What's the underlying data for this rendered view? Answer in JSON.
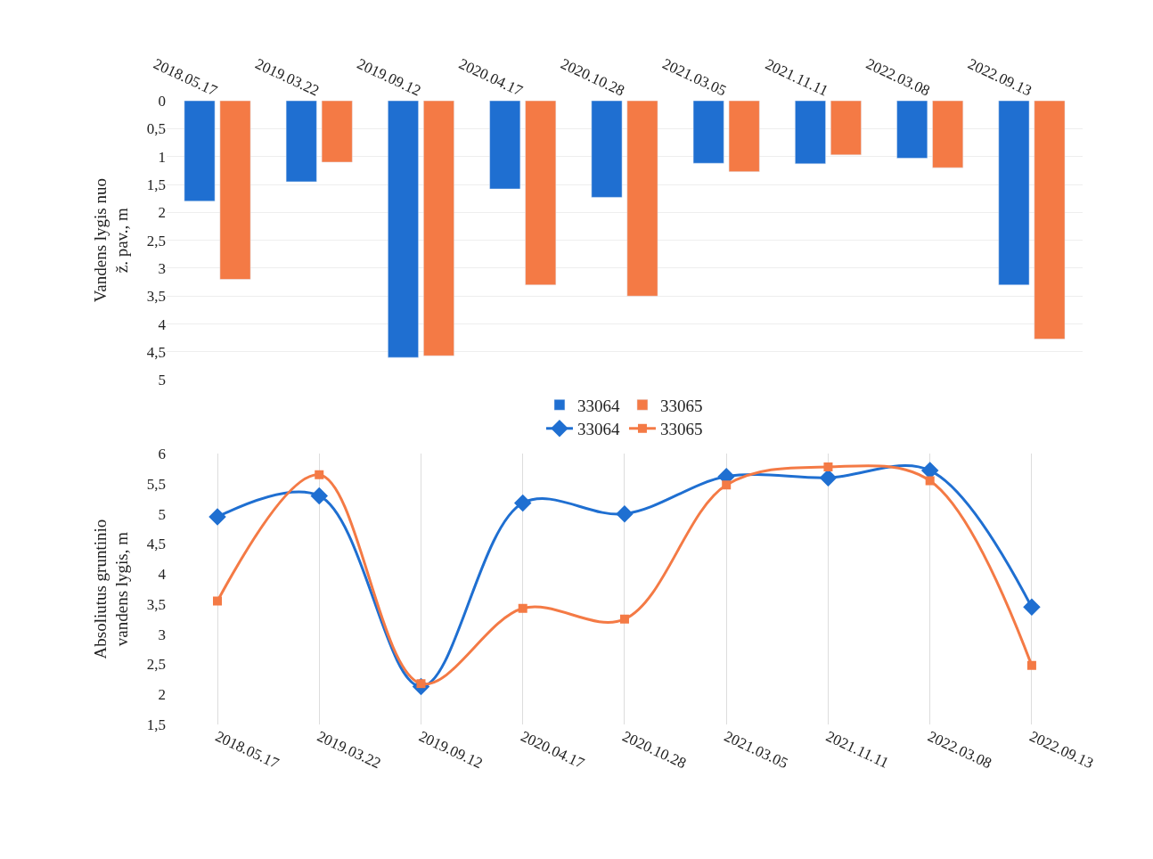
{
  "chart_data": [
    {
      "type": "bar",
      "ylabel": "Vandens lygis nuo\nž. pav., m",
      "categories": [
        "2018.05.17",
        "2019.03.22",
        "2019.09.12",
        "2020.04.17",
        "2020.10.28",
        "2021.03.05",
        "2021.11.11",
        "2022.03.08",
        "2022.09.13"
      ],
      "series": [
        {
          "name": "33064",
          "color": "#1f6fd1",
          "values": [
            1.8,
            1.45,
            4.6,
            1.58,
            1.73,
            1.12,
            1.13,
            1.03,
            3.3
          ]
        },
        {
          "name": "33065",
          "color": "#f47a45",
          "values": [
            3.2,
            1.1,
            4.57,
            3.3,
            3.5,
            1.27,
            0.97,
            1.2,
            4.27
          ]
        }
      ],
      "ylim": [
        5,
        0
      ],
      "yticks": [
        0,
        {
          "value": 0.5,
          "label": "0,5"
        },
        1,
        {
          "value": 1.5,
          "label": "1,5"
        },
        2,
        {
          "value": 2.5,
          "label": "2,5"
        },
        3,
        {
          "value": 3.5,
          "label": "3,5"
        },
        4,
        {
          "value": 4.5,
          "label": "4,5"
        },
        5
      ],
      "grid": "y",
      "legend": "bottom"
    },
    {
      "type": "line",
      "ylabel": "Absoliutus gruntinio\nvandens lygis, m",
      "categories": [
        "2018.05.17",
        "2019.03.22",
        "2019.09.12",
        "2020.04.17",
        "2020.10.28",
        "2021.03.05",
        "2021.11.11",
        "2022.03.08",
        "2022.09.13"
      ],
      "series": [
        {
          "name": "33064",
          "color": "#1f6fd1",
          "marker": "diamond",
          "values": [
            4.95,
            5.3,
            2.13,
            5.18,
            5.0,
            5.62,
            5.6,
            5.72,
            3.45
          ]
        },
        {
          "name": "33065",
          "color": "#f47a45",
          "marker": "square",
          "values": [
            3.55,
            5.65,
            2.18,
            3.43,
            3.25,
            5.48,
            5.78,
            5.55,
            2.48
          ]
        }
      ],
      "ylim": [
        1.5,
        6
      ],
      "yticks": [
        {
          "value": 1.5,
          "label": "1,5"
        },
        2,
        {
          "value": 2.5,
          "label": "2,5"
        },
        3,
        {
          "value": 3.5,
          "label": "3,5"
        },
        4,
        {
          "value": 4.5,
          "label": "4,5"
        },
        5,
        {
          "value": 5.5,
          "label": "5,5"
        },
        6
      ],
      "grid": "x",
      "legend": "top"
    }
  ]
}
